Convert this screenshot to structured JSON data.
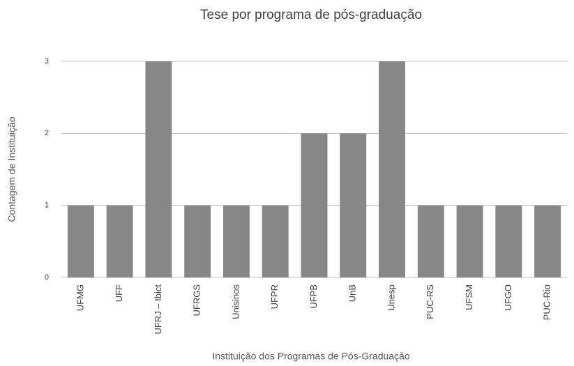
{
  "chart_data": {
    "type": "bar",
    "title": "Tese por programa de pós-graduação",
    "x_label": "Instituição dos Programas de Pós-Graduação",
    "y_label": "Contagem de Instituição",
    "categories": [
      "UFMG",
      "UFF",
      "UFRJ – Ibict",
      "UFRGS",
      "Unisinos",
      "UFPR",
      "UFPB",
      "UnB",
      "Unesp",
      "PUC-RS",
      "UFSM",
      "UFGO",
      "PUC-Rio"
    ],
    "values": [
      1,
      1,
      3,
      1,
      1,
      1,
      2,
      2,
      3,
      1,
      1,
      1,
      1
    ],
    "color": "#878787",
    "ylim": [
      0,
      3
    ],
    "yticks": [
      0,
      1,
      2,
      3
    ],
    "grid": true
  }
}
